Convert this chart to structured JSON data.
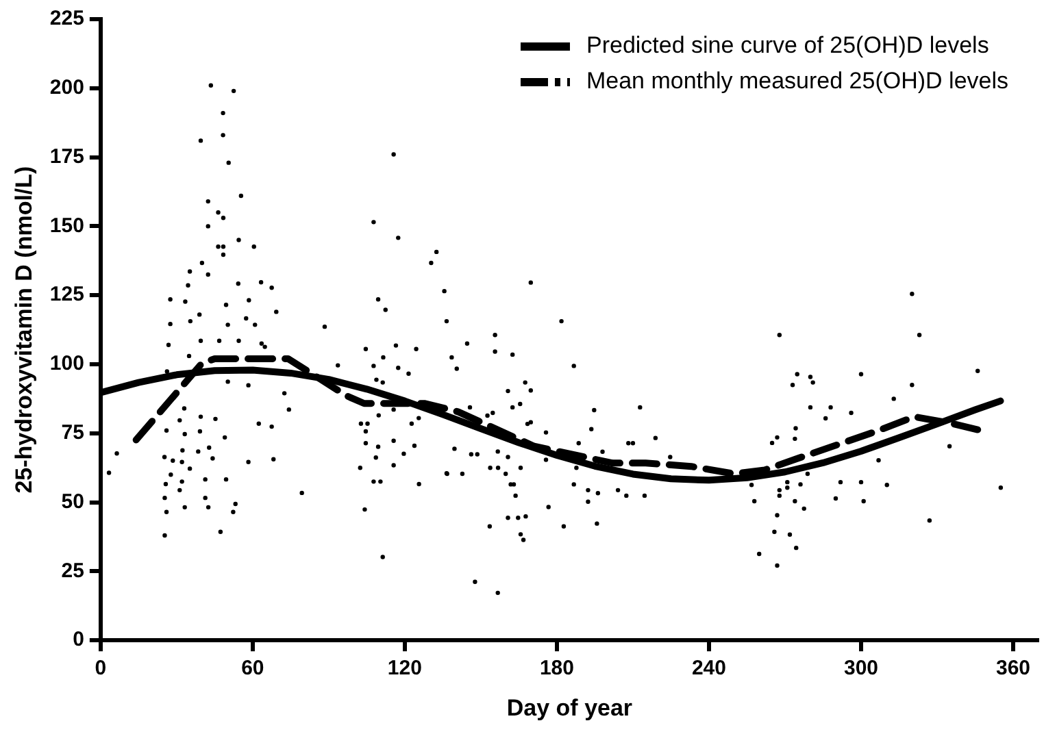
{
  "chart_data": {
    "type": "scatter",
    "xlabel": "Day of year",
    "ylabel": "25-hydroxyvitamin D (nmol/L)",
    "xlim": [
      0,
      370
    ],
    "xticks": [
      0,
      60,
      120,
      180,
      240,
      300,
      360
    ],
    "ylim": [
      0,
      225
    ],
    "yticks": [
      0,
      25,
      50,
      75,
      100,
      125,
      150,
      175,
      200,
      225
    ],
    "grid": false,
    "legend": "top right",
    "series": [
      {
        "color": "#000000",
        "marker": "circle",
        "x": [
          3.3,
          6.4,
          43.5,
          52.5,
          48.3,
          48.3,
          39.5,
          50.5,
          55.4,
          42.4,
          46.4,
          48.4,
          42.4,
          54.5,
          60.5,
          46.4,
          48.4,
          48.4,
          40,
          35.2,
          42.4,
          34.5,
          27.5,
          33.4,
          54.3,
          63.3,
          67.5,
          58.5,
          69.3,
          39,
          49.5,
          27.5,
          35.4,
          57.4,
          60.9,
          50.2,
          26.8,
          39.5,
          46.8,
          54.5,
          63.5,
          64.8,
          88.4,
          34.9,
          26.2,
          93.6,
          58.3,
          50.2,
          72.5,
          74.3,
          33,
          39.5,
          45.3,
          31.2,
          26,
          39.2,
          49,
          62.4,
          67.5,
          33.2,
          32.3,
          38.5,
          42.8,
          44.2,
          25.2,
          28.5,
          32.1,
          35.2,
          58.3,
          68.2,
          27.7,
          25.7,
          32.1,
          41.3,
          49.5,
          31.2,
          25.3,
          33.2,
          41.3,
          42.5,
          53.2,
          52.3,
          79.4,
          26,
          25.3,
          47.3,
          104.2,
          111.3,
          115.6,
          107.7,
          117.4,
          130.4,
          132.5,
          109.5,
          112.4,
          135.6,
          136.5,
          104.6,
          116.5,
          124.5,
          107.7,
          111.5,
          117.4,
          121.5,
          108.8,
          111.3,
          115.6,
          125.5,
          102.7,
          105.3,
          109.7,
          104.6,
          122.7,
          115.6,
          104.6,
          109.5,
          123.8,
          119.6,
          108.6,
          102.4,
          115.6,
          136.5,
          107.7,
          110.4,
          125.6,
          169.7,
          181.8,
          186.7,
          155.6,
          155.6,
          162.5,
          144.6,
          138.5,
          140.5,
          160.7,
          167.5,
          169.7,
          165.5,
          162.5,
          145.7,
          152.6,
          154.7,
          169.7,
          168.4,
          194.7,
          212.8,
          193.6,
          175.7,
          188.6,
          208.2,
          210,
          218.9,
          198,
          224.7,
          139.6,
          146.2,
          148.6,
          156.7,
          160.7,
          136.7,
          142.7,
          153.7,
          156.8,
          159.8,
          165.7,
          161.8,
          163,
          163.7,
          175.7,
          187.7,
          186.7,
          192.3,
          192.3,
          196.2,
          204.1,
          207.4,
          214.6,
          176.7,
          153.5,
          160.7,
          164.7,
          167.7,
          182.7,
          195.8,
          165.7,
          166.8,
          147.7,
          156.7,
          267.8,
          320.1,
          323,
          346,
          274.8,
          280,
          281,
          273,
          300,
          320.1,
          312.9,
          280,
          288,
          286,
          296.1,
          274.2,
          273.9,
          266.9,
          264.9,
          334.9,
          306.9,
          278.9,
          256.8,
          270.9,
          270.9,
          276.1,
          267.8,
          267.8,
          257.9,
          273.9,
          291.9,
          300,
          310.2,
          290,
          301,
          355.1,
          277.5,
          266.9,
          327,
          265.8,
          271.9,
          274.4,
          259.8,
          266.9
        ],
        "values": [
          60.7,
          67.7,
          201,
          199,
          191,
          183,
          181,
          173,
          161,
          159,
          155,
          153,
          150,
          145,
          142.6,
          142.6,
          142.6,
          139.7,
          136.7,
          133.6,
          132.5,
          128.6,
          123.5,
          122.7,
          129.2,
          129.7,
          127.7,
          123.2,
          119,
          118,
          121.5,
          114.6,
          115.6,
          116.6,
          114.3,
          114.3,
          107,
          108.5,
          108.5,
          108.5,
          107.5,
          106.3,
          113.6,
          103,
          97.4,
          99.6,
          92.4,
          93.7,
          89.5,
          83.6,
          84,
          81,
          80.2,
          79.7,
          76,
          75.7,
          73.5,
          78.5,
          77.4,
          74.7,
          68.8,
          68.4,
          69.8,
          65.9,
          66.4,
          65.1,
          64.6,
          62.2,
          64.6,
          65.6,
          60,
          56.6,
          57.5,
          58.3,
          58.3,
          54.4,
          51.6,
          48.2,
          51.6,
          48.2,
          49.4,
          46.5,
          53.4,
          46.5,
          38,
          39.3,
          47.4,
          30.2,
          176,
          151.5,
          145.8,
          136.7,
          140.7,
          123.5,
          119.7,
          126.5,
          115.6,
          105.5,
          106.8,
          105.5,
          99.4,
          102.5,
          98.7,
          96.6,
          94.4,
          93.4,
          83.6,
          80.5,
          78.5,
          78.5,
          81.5,
          75.7,
          78.5,
          72.3,
          71.4,
          70.1,
          70.5,
          67.6,
          66.2,
          62.5,
          63.4,
          60.5,
          57.5,
          57.5,
          56.6,
          129.6,
          115.6,
          99.4,
          110.6,
          104.6,
          103.5,
          107.5,
          102.5,
          98.4,
          90.3,
          93.4,
          90.5,
          85.6,
          84.4,
          84.4,
          81.4,
          82.4,
          79,
          78.4,
          83.4,
          84.4,
          76.5,
          75.3,
          71.4,
          71.4,
          71.4,
          73.3,
          68.3,
          66.4,
          69.4,
          67.4,
          67.4,
          68.4,
          66.4,
          60.3,
          60.3,
          62.5,
          62.5,
          60.3,
          62.5,
          56.5,
          56.5,
          52.4,
          65.4,
          62.5,
          56.5,
          54.4,
          50.2,
          53.3,
          54.4,
          52.4,
          52.4,
          48.3,
          41.3,
          44.4,
          44.4,
          44.9,
          41.3,
          42.3,
          38.4,
          36.4,
          21.2,
          17.2,
          110.6,
          125.5,
          110.6,
          97.6,
          96.4,
          95.4,
          93.4,
          92.5,
          96.4,
          92.5,
          87.5,
          84.4,
          84.4,
          80.4,
          82.4,
          76.8,
          73,
          73.5,
          71.5,
          70.3,
          65.2,
          60.3,
          56.3,
          57.3,
          55.3,
          56.5,
          54.4,
          52.4,
          50.4,
          50.4,
          57.3,
          57.3,
          56.3,
          51.4,
          50.4,
          55.3,
          47.7,
          45.3,
          43.4,
          39.3,
          38.3,
          33.5,
          31.3,
          27.1
        ]
      },
      {
        "type": "line",
        "name": "Predicted sine curve of 25(OH)D levels",
        "color": "#000000",
        "line_style": "solid",
        "marker": "none",
        "x": [
          0,
          15,
          30,
          45,
          60,
          75,
          90,
          105,
          120,
          135,
          150,
          165,
          180,
          195,
          210,
          225,
          240,
          255,
          270,
          285,
          300,
          315,
          330,
          345,
          355
        ],
        "values": [
          89.7,
          93.4,
          96.2,
          97.7,
          97.9,
          96.8,
          94.5,
          91,
          86.7,
          81.8,
          76.7,
          71.6,
          67,
          63.1,
          60.2,
          58.5,
          58,
          58.9,
          61,
          64.3,
          68.5,
          73.4,
          78.4,
          83.5,
          86.7
        ]
      },
      {
        "type": "line",
        "name": "Mean monthly measured 25(OH)D levels",
        "color": "#000000",
        "line_style": "dashed",
        "marker": "none",
        "x": [
          14,
          40,
          45,
          74,
          97,
          104,
          128,
          141,
          171,
          202,
          215,
          233,
          250,
          262,
          275,
          306,
          321,
          336,
          346
        ],
        "values": [
          72.6,
          100.4,
          102,
          102,
          88.6,
          85.8,
          85.8,
          82.8,
          70.3,
          64.2,
          64.2,
          63,
          60.3,
          61.7,
          65.9,
          75.7,
          81,
          78.5,
          76.3
        ]
      }
    ]
  }
}
